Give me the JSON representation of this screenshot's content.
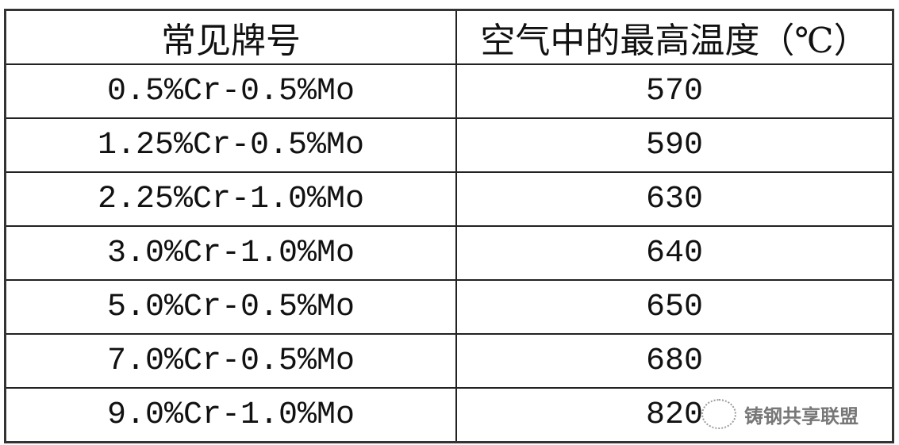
{
  "table": {
    "headers": [
      "常见牌号",
      "空气中的最高温度（℃）"
    ],
    "rows": [
      [
        "0.5%Cr-0.5%Mo",
        "570"
      ],
      [
        "1.25%Cr-0.5%Mo",
        "590"
      ],
      [
        "2.25%Cr-1.0%Mo",
        "630"
      ],
      [
        "3.0%Cr-1.0%Mo",
        "640"
      ],
      [
        "5.0%Cr-0.5%Mo",
        "650"
      ],
      [
        "7.0%Cr-0.5%Mo",
        "680"
      ],
      [
        "9.0%Cr-1.0%Mo",
        "820"
      ]
    ]
  },
  "watermark": {
    "text": "铸钢共享联盟",
    "icon": "wechat-icon"
  }
}
